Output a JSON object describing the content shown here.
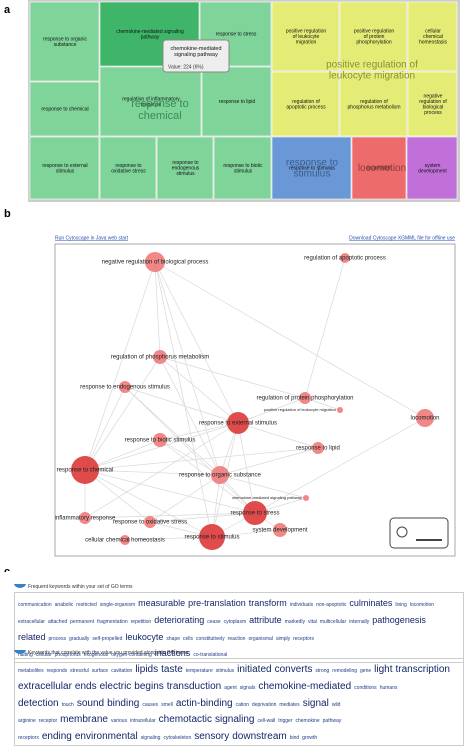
{
  "panels": {
    "a": {
      "label": "a",
      "cells": [
        "response to organic substance",
        "chemokine-mediated signaling pathway",
        "response to stress",
        "response to chemical",
        "regulation of inflammatory response",
        "response to lipid",
        "response to external stimulus",
        "response to oxidative stress",
        "response to endogenous stimulus",
        "response to biotic stimulus",
        "positive regulation of leukocyte migration",
        "positive regulation of protein phosphorylation",
        "cellular chemical homeostasis",
        "regulation of apoptotic process",
        "regulation of phosphorus metabolism",
        "negative regulation of biological process",
        "response to stimulus",
        "locomotion",
        "system development"
      ],
      "group_labels": [
        "response to chemical",
        "positive regulation of leukocyte migration",
        "response to stimulus",
        "locomotion"
      ],
      "tooltip": {
        "title": "chemokine-mediated signaling pathway",
        "value": "Value: 224 (6%)"
      }
    },
    "b": {
      "label": "b",
      "links": [
        "Run Cytoscape in Java web start",
        "Download Cytoscape XGMML file for offline use"
      ],
      "nodes": [
        "negative regulation of biological process",
        "regulation of apoptotic process",
        "regulation of phosphorus metabolism",
        "response to endogenous stimulus",
        "regulation of protein phosphorylation",
        "positive regulation of leukocyte migration",
        "locomotion",
        "response to external stimulus",
        "response to biotic stimulus",
        "response to lipid",
        "response to chemical",
        "response to organic substance",
        "response to stress",
        "chemokine-mediated signaling pathway",
        "inflammatory response",
        "response to oxidative stress",
        "system development",
        "cellular chemical homeostasis",
        "response to stimulus"
      ]
    },
    "c": {
      "label": "c",
      "clouds": [
        {
          "caption": "Frequent keywords within your set of GO terms",
          "lines": [
            [
              "communication",
              "anabolic",
              "restricted",
              "single-organism",
              "measurable",
              "pre-translation",
              "transform",
              "individuals",
              "non-apoptotic",
              "culminates",
              "living",
              "locomotion"
            ],
            [
              "extracellular",
              "attached",
              "permanent",
              "fragmentation",
              "repetition",
              "deteriorating",
              "cease",
              "cytoplasm",
              "attribute",
              "markedly",
              "vital",
              "multicellular",
              "internally",
              "pathogenesis"
            ],
            [
              "related",
              "process",
              "gradually",
              "self-propelled",
              "leukocyte",
              "shape",
              "cells",
              "constitutively",
              "reaction",
              "organismal",
              "simply",
              "receptors"
            ],
            [
              "halting",
              "cellular",
              "phosphorus",
              "exogenous",
              "oxygen-containing",
              "inactions",
              "co-translational"
            ]
          ]
        },
        {
          "caption": "Keywords that correlate with the value you provided alongside GO terms",
          "lines": [
            [
              "metabolites",
              "responds",
              "stressful",
              "surface",
              "cavitation",
              "lipids",
              "taste",
              "temperature",
              "stimulus",
              "initiated",
              "converts",
              "strong",
              "remodeling",
              "gene",
              "light",
              "transcription"
            ],
            [
              "extracellular",
              "ends",
              "electric",
              "begins",
              "transduction",
              "agent",
              "signals",
              "chemokine-mediated",
              "conditions",
              "humans"
            ],
            [
              "detection",
              "touch",
              "sound",
              "binding",
              "causes",
              "smell",
              "actin-binding",
              "cation",
              "deprivation",
              "mediates",
              "signal",
              "wild"
            ],
            [
              "arginine",
              "receptor",
              "membrane",
              "various",
              "intracellular",
              "chemotactic",
              "signaling",
              "cell-wall",
              "trigger",
              "chemokine",
              "pathway"
            ],
            [
              "receptors",
              "ending",
              "environmental",
              "signaling",
              "cytoskeleton",
              "sensory",
              "downstream",
              "bind",
              "growth"
            ]
          ]
        }
      ]
    }
  }
}
